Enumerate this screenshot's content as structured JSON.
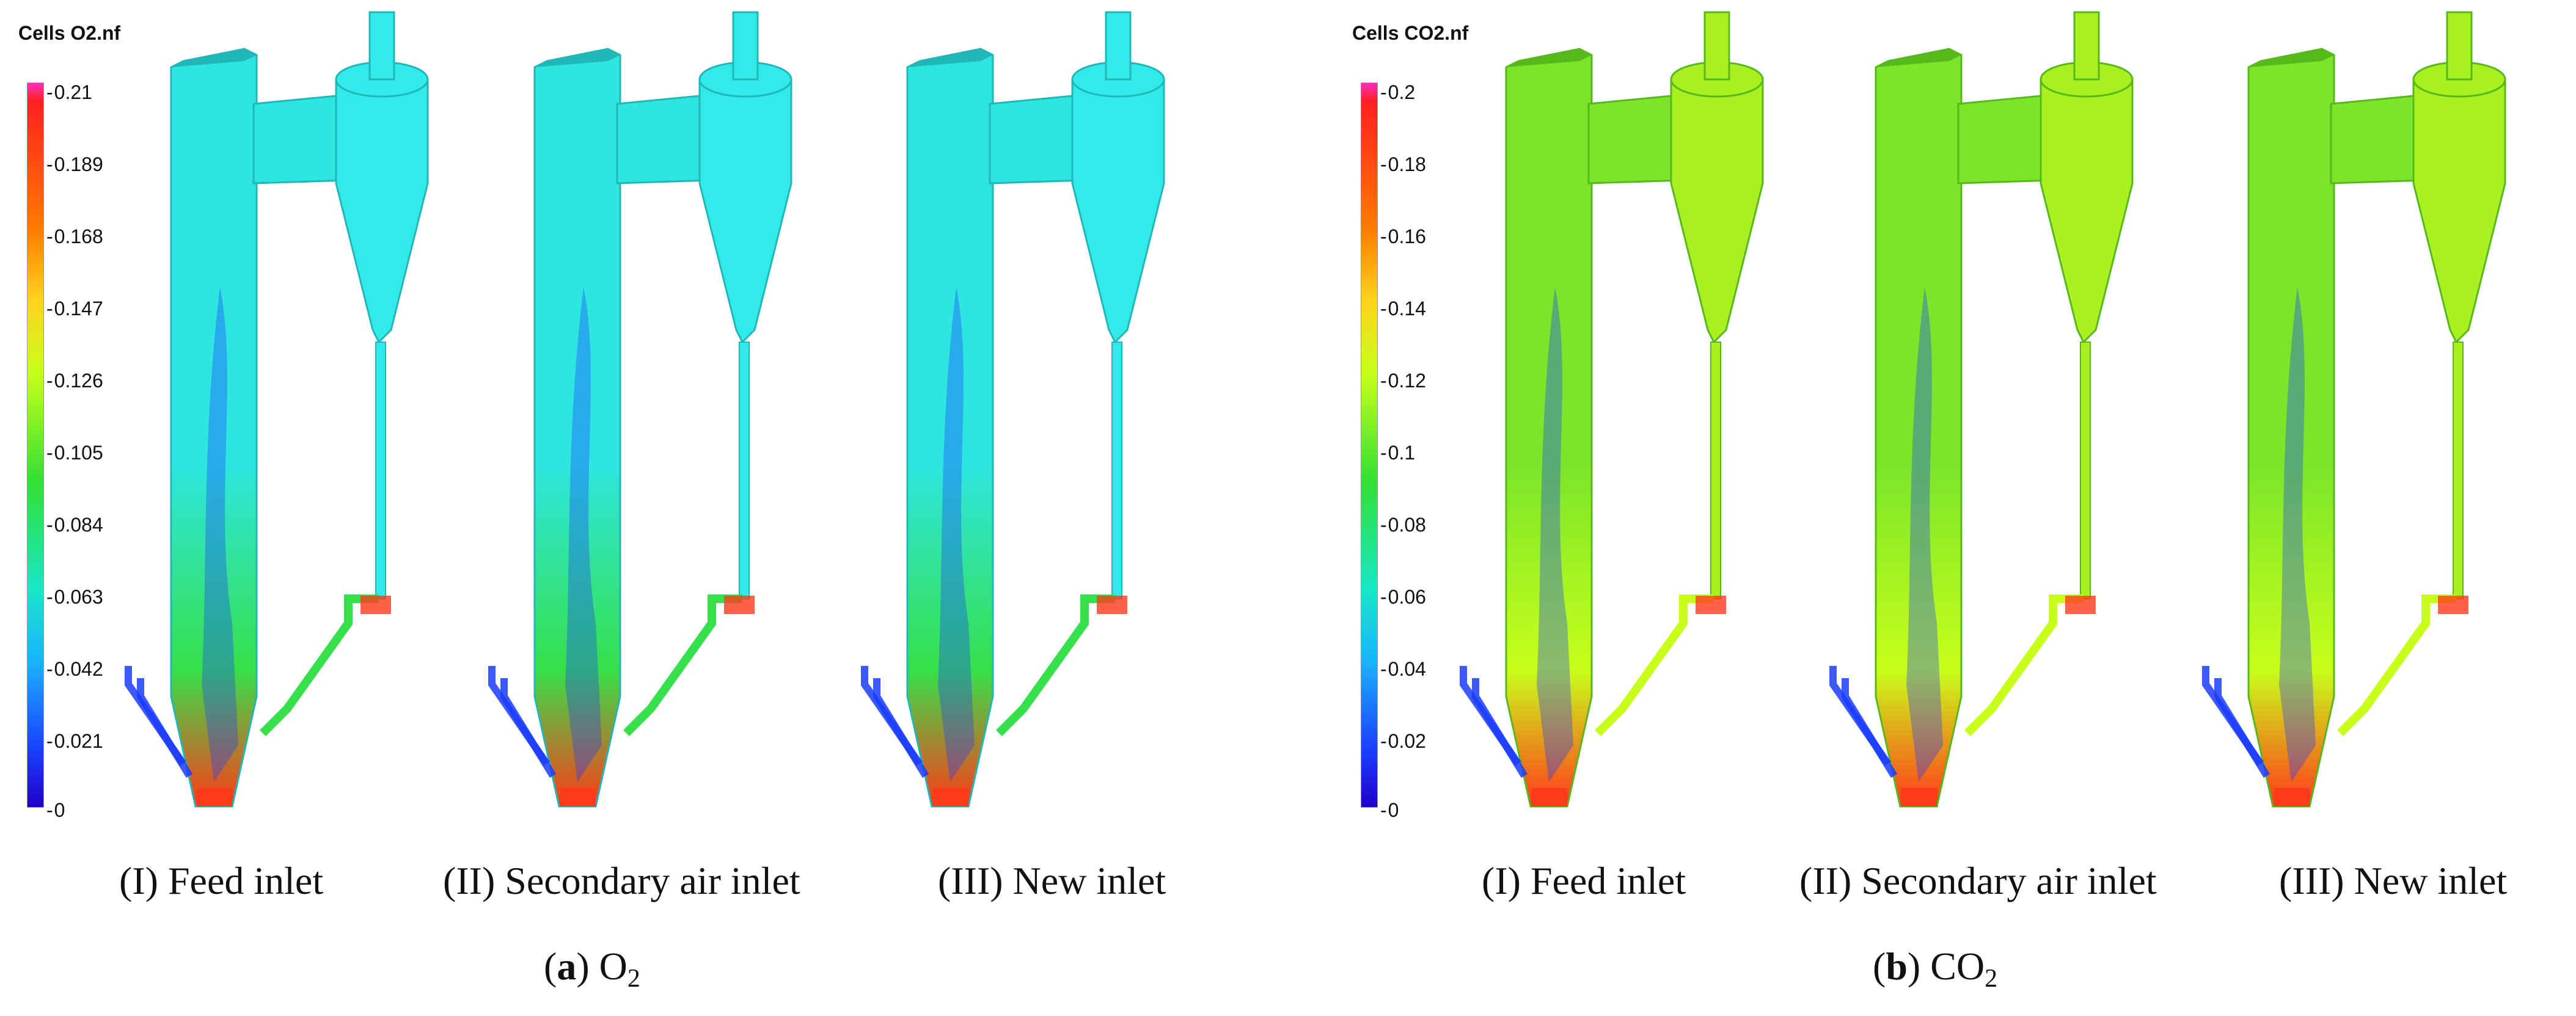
{
  "panels": [
    {
      "id": "a",
      "colorbar": {
        "title": "Cells O2.nf",
        "ticks": [
          "0.21",
          "0.189",
          "0.168",
          "0.147",
          "0.126",
          "0.105",
          "0.084",
          "0.063",
          "0.042",
          "0.021",
          "0"
        ]
      },
      "reactor_labels": [
        "(I) Feed inlet",
        "(II) Secondary air inlet",
        "(III) New inlet"
      ],
      "caption": {
        "letter": "a",
        "species": "O",
        "subscript": "2"
      },
      "colors": {
        "body": "#2ee6e0",
        "body_dark": "#1fb7b8",
        "hot": "#ff3a1a",
        "low": "#1a3cff",
        "mid": "#36e04a",
        "cyclone": "#33eaea"
      }
    },
    {
      "id": "b",
      "colorbar": {
        "title": "Cells CO2.nf",
        "ticks": [
          "0.2",
          "0.18",
          "0.16",
          "0.14",
          "0.12",
          "0.1",
          "0.08",
          "0.06",
          "0.04",
          "0.02",
          "0"
        ]
      },
      "reactor_labels": [
        "(I) Feed inlet",
        "(II) Secondary air inlet",
        "(III) New inlet"
      ],
      "caption": {
        "letter": "b",
        "species": "CO",
        "subscript": "2"
      },
      "colors": {
        "body": "#7be52a",
        "body_dark": "#57b81c",
        "hot": "#ff3a1a",
        "low": "#1a3cff",
        "mid": "#c8ff1a",
        "cyclone": "#a8f01f"
      }
    }
  ]
}
